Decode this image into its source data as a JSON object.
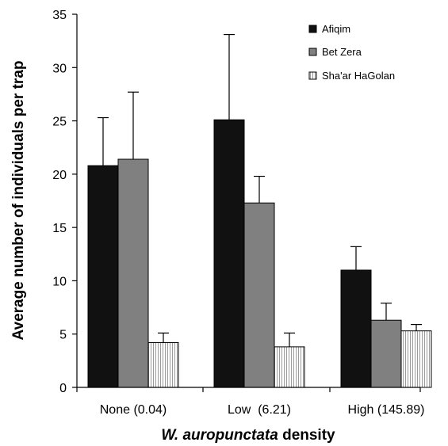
{
  "chart_data": {
    "type": "bar",
    "categories": [
      "None (0.04)",
      "Low  (6.21)",
      "High (145.89)"
    ],
    "series": [
      {
        "name": "Afiqim",
        "color": "#111111",
        "fill": "solid",
        "values": [
          20.8,
          25.1,
          11.0
        ],
        "errors": [
          4.5,
          8.0,
          2.2
        ]
      },
      {
        "name": "Bet Zera",
        "color": "#808080",
        "fill": "solid",
        "values": [
          21.4,
          17.3,
          6.3
        ],
        "errors": [
          6.3,
          2.5,
          1.6
        ]
      },
      {
        "name": "Sha'ar HaGolan",
        "color": "#ffffff",
        "fill": "vertical-stripes",
        "values": [
          4.2,
          3.8,
          5.3
        ],
        "errors": [
          0.9,
          1.3,
          0.6
        ]
      }
    ],
    "ylabel": "Average number of individuals per trap",
    "xlabel_italic": "W. auropunctata",
    "xlabel_rest": " density",
    "ylim": [
      0,
      35
    ],
    "yticks": [
      "0",
      "5",
      "10",
      "15",
      "20",
      "25",
      "30",
      "35"
    ],
    "legend_position": "top-right",
    "grid": false
  }
}
